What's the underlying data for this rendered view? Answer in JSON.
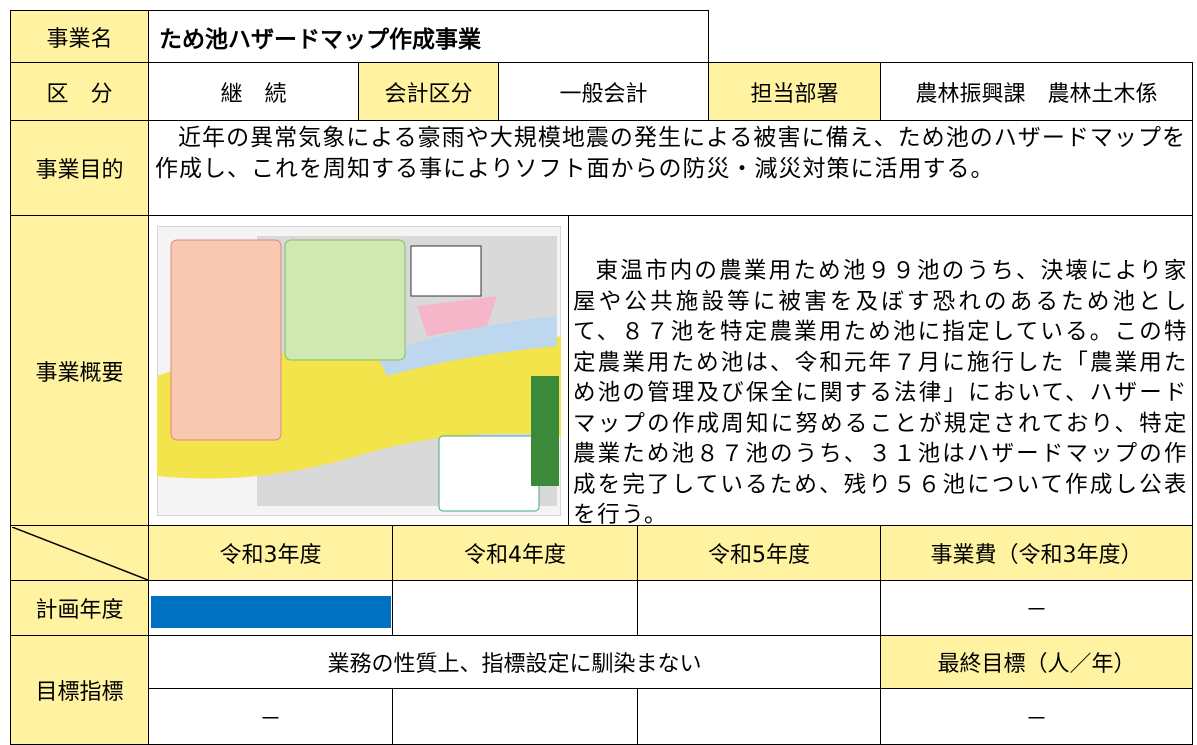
{
  "row_project": {
    "label": "事業名",
    "value": "ため池ハザードマップ作成事業"
  },
  "row_category": {
    "label": "区　分",
    "value": "継　続",
    "account_label": "会計区分",
    "account_value": "一般会計",
    "dept_label": "担当部署",
    "dept_value": "農林振興課　農林土木係"
  },
  "row_purpose": {
    "label": "事業目的",
    "value": "近年の異常気象による豪雨や大規模地震の発生による被害に備え、ため池のハザードマップを作成し、これを周知する事によりソフト面からの防災・減災対策に活用する。"
  },
  "row_overview": {
    "label": "事業概要",
    "value": "東温市内の農業用ため池９９池のうち、決壊により家屋や公共施設等に被害を及ぼす恐れのあるため池として、８７池を特定農業用ため池に指定している。この特定農業用ため池は、令和元年７月に施行した「農業用ため池の管理及び保全に関する法律」において、ハザードマップの作成周知に努めることが規定されており、特定農業ため池８７池のうち、３１池はハザードマップの作成を完了しているため、残り５６池について作成し公表を行う。"
  },
  "schedule": {
    "headers": [
      "令和3年度",
      "令和4年度",
      "令和5年度",
      "事業費（令和3年度）"
    ],
    "plan_label": "計画年度",
    "cost": "－"
  },
  "target": {
    "label": "目標指標",
    "note": "業務の性質上、指標設定に馴染まない",
    "final_label": "最終目標（人／年）",
    "values": [
      "－",
      "－"
    ]
  }
}
